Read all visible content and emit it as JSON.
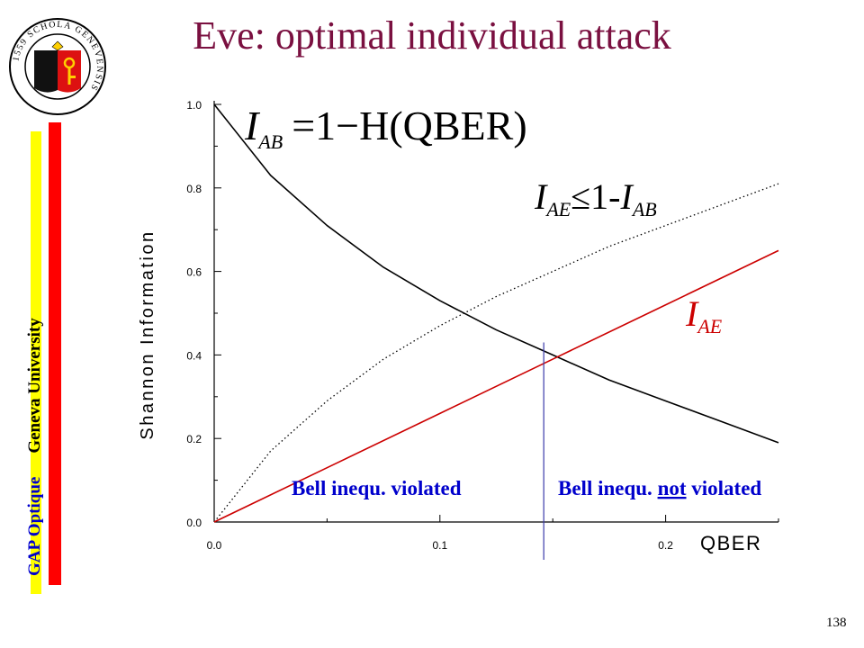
{
  "slide": {
    "title": "Eve: optimal individual attack",
    "page_number": "138",
    "side_label": {
      "part1": "GAP Optique",
      "part2": "Geneva University",
      "color1": "#0000cc",
      "color2": "#000000"
    },
    "accent_colors": {
      "title": "#7a1040",
      "bar_yellow": "#ffff00",
      "bar_red": "#ff0000"
    }
  },
  "logo": {
    "icon": "geneva-university-seal-icon",
    "text": "1559 SCHOLA GENEVENSIS"
  },
  "chart_data": {
    "type": "line",
    "ylabel": "Shannon Information",
    "xlabel": "QBER",
    "xlim": [
      0,
      0.25
    ],
    "ylim": [
      0,
      1.0
    ],
    "x_ticks": [
      "0.0",
      "0.1",
      "0.2"
    ],
    "y_ticks": [
      "0.0",
      "0.2",
      "0.4",
      "0.6",
      "0.8",
      "1.0"
    ],
    "grid": false,
    "series": [
      {
        "name": "I_AB = 1 − H(QBER)",
        "color": "#000000",
        "style": "solid",
        "x": [
          0,
          0.025,
          0.05,
          0.075,
          0.1,
          0.125,
          0.15,
          0.175,
          0.2,
          0.225,
          0.25
        ],
        "y": [
          1.0,
          0.83,
          0.71,
          0.61,
          0.53,
          0.46,
          0.4,
          0.34,
          0.29,
          0.24,
          0.19
        ]
      },
      {
        "name": "I_AE ≤ 1 − I_AB",
        "color": "#000000",
        "style": "dotted",
        "x": [
          0,
          0.025,
          0.05,
          0.075,
          0.1,
          0.125,
          0.15,
          0.175,
          0.2,
          0.225,
          0.25
        ],
        "y": [
          0.0,
          0.17,
          0.29,
          0.39,
          0.47,
          0.54,
          0.6,
          0.66,
          0.71,
          0.76,
          0.81
        ]
      },
      {
        "name": "I_AE",
        "color": "#cc0000",
        "style": "solid",
        "x": [
          0,
          0.05,
          0.1,
          0.15,
          0.2,
          0.25
        ],
        "y": [
          0.0,
          0.13,
          0.26,
          0.39,
          0.52,
          0.65
        ]
      }
    ],
    "threshold": {
      "x": 0.146,
      "color": "#3a3aaa"
    },
    "annotations": {
      "formula_iab": {
        "I": "I",
        "sub": "AB",
        "rest": "=1−H(QBER)"
      },
      "formula_bound": {
        "I1": "I",
        "sub1": "AE",
        "mid": "≤1-",
        "I2": "I",
        "sub2": "AB"
      },
      "label_iae": {
        "I": "I",
        "sub": "AE",
        "color": "#cc0000"
      },
      "bell_violated": "Bell inequ. violated",
      "bell_not_violated_pre": "Bell inequ. ",
      "bell_not_violated_not": "not",
      "bell_not_violated_post": " violated",
      "bell_color": "#0000cc"
    }
  }
}
